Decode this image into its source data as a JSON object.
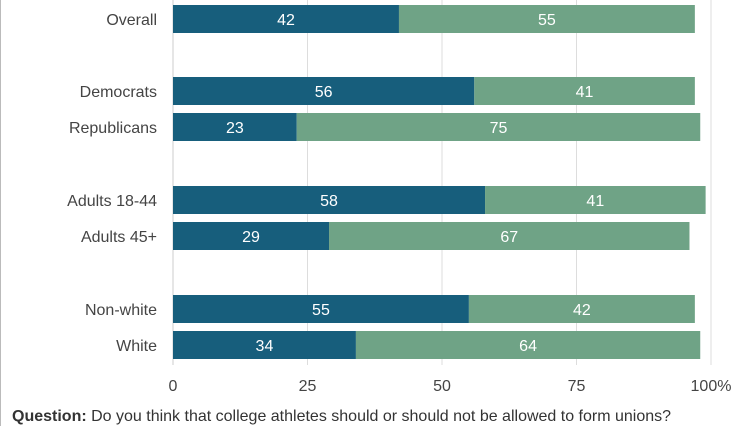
{
  "colors": {
    "series_1": "#175e7c",
    "series_2": "#6fa386",
    "grid": "#dddddd"
  },
  "chart_data": {
    "type": "bar",
    "orientation": "horizontal",
    "stacked": true,
    "categories": [
      "Overall",
      "Democrats",
      "Republicans",
      "Adults 18-44",
      "Adults 45+",
      "Non-white",
      "White"
    ],
    "groups": [
      [
        "Overall"
      ],
      [
        "Democrats",
        "Republicans"
      ],
      [
        "Adults 18-44",
        "Adults 45+"
      ],
      [
        "Non-white",
        "White"
      ]
    ],
    "series": [
      {
        "values": [
          42,
          56,
          23,
          58,
          29,
          55,
          34
        ]
      },
      {
        "values": [
          55,
          41,
          75,
          41,
          67,
          42,
          64
        ]
      }
    ],
    "xlim": [
      0,
      100
    ],
    "xticks": [
      "0",
      "25",
      "50",
      "75",
      "100%"
    ],
    "xtick_values": [
      0,
      25,
      50,
      75,
      100
    ],
    "grid": true,
    "legend": false
  },
  "question": {
    "label": "Question:",
    "text": " Do you think that college athletes should or should not be allowed to form unions?"
  }
}
